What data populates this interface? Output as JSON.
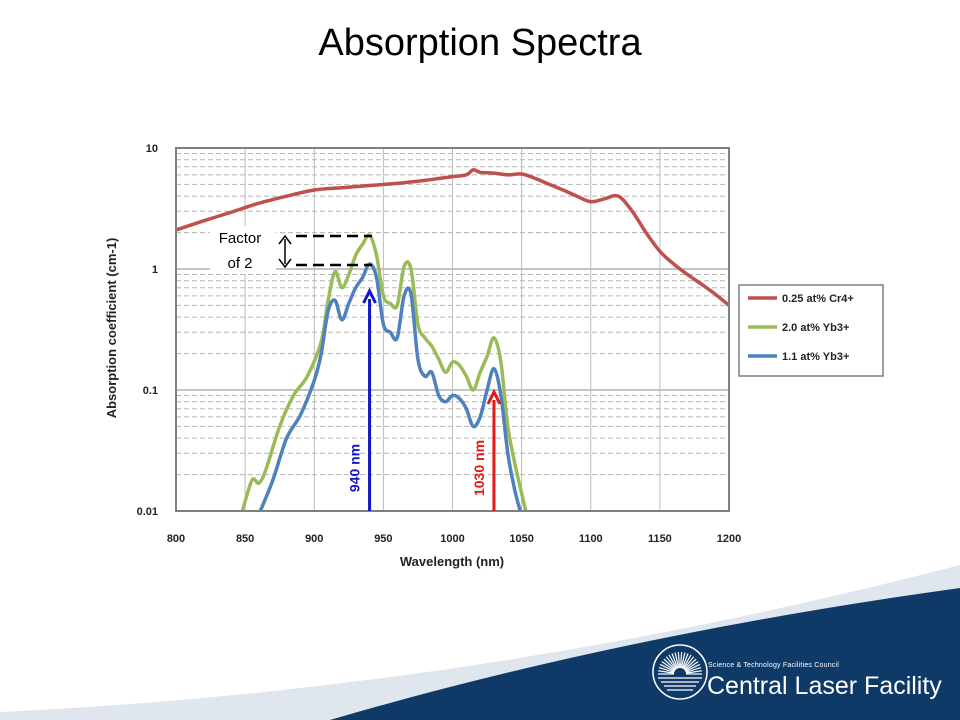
{
  "slide": {
    "title": "Absorption Spectra"
  },
  "logo": {
    "council": "Science & Technology Facilities Council",
    "facility": "Central Laser Facility"
  },
  "colors": {
    "cr4": "#c0504d",
    "yb_20": "#9bbb59",
    "yb_11": "#4f81bd",
    "arrow_940": "#1515c8",
    "arrow_1030": "#e01818",
    "banner_dark": "#0f3a68",
    "banner_light": "#dfe6ee"
  },
  "annotations": {
    "factor_line1": "Factor",
    "factor_line2": "of 2",
    "arrow_940_label": "940 nm",
    "arrow_1030_label": "1030 nm",
    "arrow_940_x": 940,
    "arrow_1030_x": 1030
  },
  "chart_data": {
    "type": "line",
    "title": "",
    "xlabel": "Wavelength (nm)",
    "ylabel": "Absorption coefficient (cm-1)",
    "xlim": [
      800,
      1200
    ],
    "ylim": [
      0.01,
      10
    ],
    "y_scale": "log",
    "x_ticks": [
      800,
      850,
      900,
      950,
      1000,
      1050,
      1100,
      1150,
      1200
    ],
    "y_ticks": [
      0.01,
      0.1,
      1,
      10
    ],
    "y_tick_labels": [
      "0.01",
      "0.1",
      "1",
      "10"
    ],
    "grid": true,
    "legend_position": "right",
    "series": [
      {
        "name": "0.25 at% Cr4+",
        "color_key": "cr4",
        "x": [
          800,
          820,
          840,
          860,
          880,
          900,
          920,
          940,
          960,
          980,
          990,
          1000,
          1010,
          1015,
          1020,
          1030,
          1040,
          1050,
          1060,
          1070,
          1080,
          1090,
          1100,
          1110,
          1120,
          1130,
          1140,
          1150,
          1160,
          1170,
          1180,
          1190,
          1200
        ],
        "y": [
          2.1,
          2.5,
          2.95,
          3.5,
          4.0,
          4.5,
          4.7,
          4.9,
          5.1,
          5.4,
          5.6,
          5.8,
          6.0,
          6.6,
          6.3,
          6.2,
          6.0,
          6.1,
          5.6,
          5.0,
          4.5,
          4.0,
          3.6,
          3.8,
          4.0,
          3.0,
          2.0,
          1.4,
          1.1,
          0.9,
          0.75,
          0.62,
          0.5
        ]
      },
      {
        "name": "2.0 at% Yb3+",
        "color_key": "yb_20",
        "x": [
          848,
          855,
          860,
          865,
          875,
          885,
          895,
          905,
          910,
          915,
          920,
          925,
          930,
          935,
          940,
          945,
          950,
          955,
          960,
          965,
          970,
          975,
          980,
          985,
          990,
          995,
          1000,
          1005,
          1010,
          1015,
          1020,
          1025,
          1030,
          1035,
          1040,
          1045,
          1050,
          1053
        ],
        "y": [
          0.01,
          0.018,
          0.017,
          0.022,
          0.05,
          0.09,
          0.13,
          0.25,
          0.55,
          0.95,
          0.7,
          0.9,
          1.3,
          1.6,
          1.9,
          1.3,
          0.6,
          0.52,
          0.5,
          1.05,
          1.0,
          0.35,
          0.27,
          0.23,
          0.18,
          0.14,
          0.17,
          0.16,
          0.13,
          0.1,
          0.14,
          0.19,
          0.27,
          0.17,
          0.05,
          0.025,
          0.014,
          0.01
        ]
      },
      {
        "name": "1.1 at% Yb3+",
        "color_key": "yb_11",
        "x": [
          861,
          870,
          880,
          890,
          900,
          905,
          910,
          915,
          920,
          925,
          930,
          935,
          940,
          945,
          950,
          955,
          960,
          965,
          970,
          975,
          980,
          985,
          990,
          995,
          1000,
          1005,
          1010,
          1015,
          1020,
          1025,
          1030,
          1035,
          1040,
          1045,
          1049
        ],
        "y": [
          0.01,
          0.018,
          0.04,
          0.062,
          0.12,
          0.2,
          0.45,
          0.55,
          0.38,
          0.52,
          0.7,
          0.85,
          1.1,
          0.85,
          0.35,
          0.3,
          0.27,
          0.6,
          0.62,
          0.18,
          0.13,
          0.14,
          0.09,
          0.08,
          0.09,
          0.085,
          0.07,
          0.05,
          0.06,
          0.1,
          0.15,
          0.09,
          0.03,
          0.015,
          0.01
        ]
      }
    ]
  }
}
